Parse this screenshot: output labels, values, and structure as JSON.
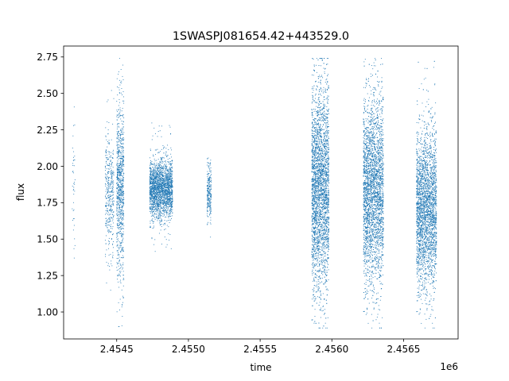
{
  "chart_data": {
    "type": "scatter",
    "title": "1SWASPJ081654.42+443529.0",
    "xlabel": "time",
    "ylabel": "flux",
    "x_offset_label": "1e6",
    "x_ticks": [
      {
        "value": 2.4545,
        "label": "2.4545"
      },
      {
        "value": 2.455,
        "label": "2.4550"
      },
      {
        "value": 2.4555,
        "label": "2.4555"
      },
      {
        "value": 2.456,
        "label": "2.4560"
      },
      {
        "value": 2.4565,
        "label": "2.4565"
      }
    ],
    "y_ticks": [
      {
        "value": 1.0,
        "label": "1.00"
      },
      {
        "value": 1.25,
        "label": "1.25"
      },
      {
        "value": 1.5,
        "label": "1.50"
      },
      {
        "value": 1.75,
        "label": "1.75"
      },
      {
        "value": 2.0,
        "label": "2.00"
      },
      {
        "value": 2.25,
        "label": "2.25"
      },
      {
        "value": 2.5,
        "label": "2.50"
      },
      {
        "value": 2.75,
        "label": "2.75"
      }
    ],
    "xlim": [
      2.45413,
      2.45688
    ],
    "ylim": [
      0.815,
      2.825
    ],
    "grid": false,
    "marker_color": "#1f77b4",
    "x_unit_scale": 1000000,
    "observing_seasons": [
      {
        "x_start": 2.45419,
        "x_end": 2.45421,
        "y_center": 1.9,
        "y_spread": 0.25,
        "y_min": 1.37,
        "y_max": 2.44,
        "points": 40
      },
      {
        "x_start": 2.45442,
        "x_end": 2.45448,
        "y_center": 1.8,
        "y_spread": 0.2,
        "y_min": 1.15,
        "y_max": 2.52,
        "points": 400
      },
      {
        "x_start": 2.4545,
        "x_end": 2.45455,
        "y_center": 1.85,
        "y_spread": 0.3,
        "y_min": 0.9,
        "y_max": 2.74,
        "points": 900
      },
      {
        "x_start": 2.45473,
        "x_end": 2.45489,
        "y_center": 1.84,
        "y_spread": 0.1,
        "y_min": 1.4,
        "y_max": 2.3,
        "points": 2200
      },
      {
        "x_start": 2.45513,
        "x_end": 2.45516,
        "y_center": 1.83,
        "y_spread": 0.1,
        "y_min": 1.5,
        "y_max": 2.28,
        "points": 250
      },
      {
        "x_start": 2.45586,
        "x_end": 2.45598,
        "y_center": 1.85,
        "y_spread": 0.35,
        "y_min": 0.89,
        "y_max": 2.74,
        "points": 3500
      },
      {
        "x_start": 2.45622,
        "x_end": 2.45636,
        "y_center": 1.83,
        "y_spread": 0.32,
        "y_min": 0.89,
        "y_max": 2.74,
        "points": 3500
      },
      {
        "x_start": 2.45659,
        "x_end": 2.45673,
        "y_center": 1.7,
        "y_spread": 0.27,
        "y_min": 0.89,
        "y_max": 2.72,
        "points": 3000
      }
    ]
  }
}
